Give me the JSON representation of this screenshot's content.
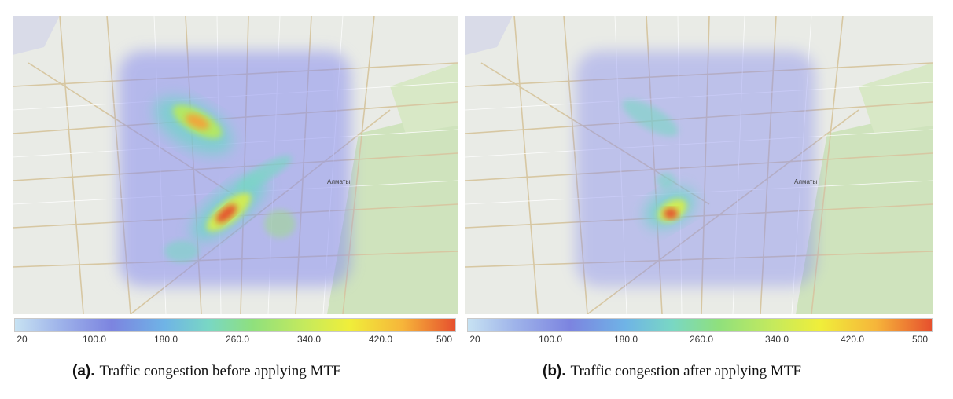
{
  "panels": [
    {
      "id": "a",
      "caption_tag": "(a).",
      "caption_text": "Traffic congestion before applying MTF",
      "map_labels": [
        "Алматы"
      ]
    },
    {
      "id": "b",
      "caption_tag": "(b).",
      "caption_text": "Traffic congestion after applying MTF",
      "map_labels": [
        "Алматы"
      ]
    }
  ],
  "colorbar": {
    "min": 20,
    "max": 500,
    "ticks": [
      "20",
      "100.0",
      "180.0",
      "260.0",
      "340.0",
      "420.0",
      "500"
    ]
  },
  "colors": {
    "low": "#c7e2f2",
    "mid_low": "#7c84e0",
    "mid": "#79d7c4",
    "mid_high": "#f0ee3a",
    "high": "#e6502e"
  }
}
